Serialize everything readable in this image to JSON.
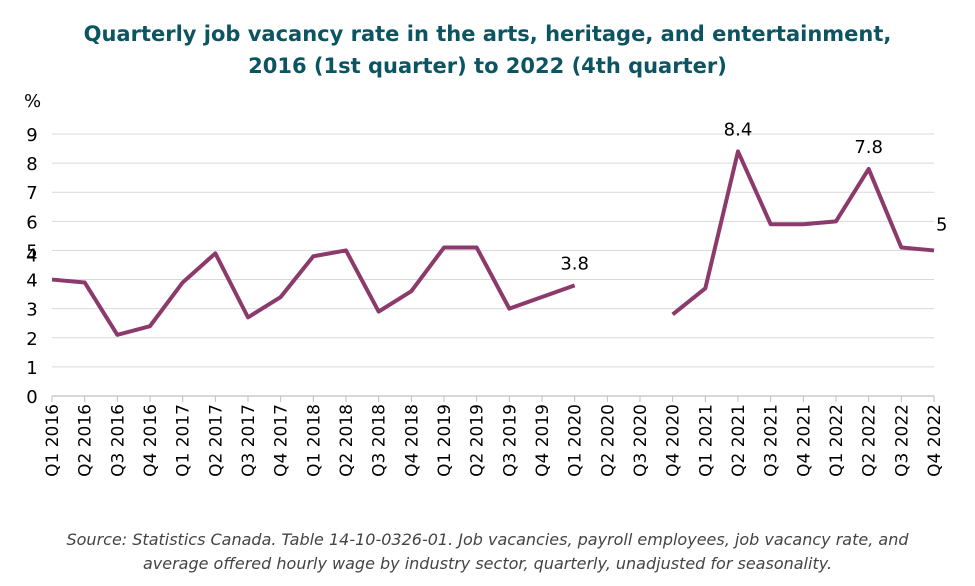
{
  "chart_data": {
    "type": "line",
    "title_line1": "Quarterly job vacancy rate in the arts, heritage, and entertainment,",
    "title_line2": "2016 (1st quarter) to 2022 (4th quarter)",
    "ylabel": "%",
    "ylim": [
      0,
      9
    ],
    "yticks": [
      0,
      1,
      2,
      3,
      4,
      5,
      6,
      7,
      8,
      9
    ],
    "grid": true,
    "categories": [
      "Q1 2016",
      "Q2 2016",
      "Q3 2016",
      "Q4 2016",
      "Q1 2017",
      "Q2 2017",
      "Q3 2017",
      "Q4 2017",
      "Q1 2018",
      "Q2 2018",
      "Q3 2018",
      "Q4 2018",
      "Q1 2019",
      "Q2 2019",
      "Q3 2019",
      "Q4 2019",
      "Q1 2020",
      "Q2 2020",
      "Q3 2020",
      "Q4 2020",
      "Q1 2021",
      "Q2 2021",
      "Q3 2021",
      "Q4 2021",
      "Q1 2022",
      "Q2 2022",
      "Q3 2022",
      "Q4 2022"
    ],
    "series": [
      {
        "color": "#8b3a6b",
        "values": [
          4.0,
          3.9,
          2.1,
          2.4,
          3.9,
          4.9,
          2.7,
          3.4,
          4.8,
          5.0,
          2.9,
          3.6,
          5.1,
          5.1,
          3.0,
          3.4,
          3.8,
          null,
          null,
          2.8,
          3.7,
          8.4,
          5.9,
          5.9,
          6.0,
          7.8,
          5.1,
          5.0
        ]
      }
    ],
    "data_labels": [
      {
        "index": 0,
        "text": "4"
      },
      {
        "index": 16,
        "text": "3.8"
      },
      {
        "index": 21,
        "text": "8.4"
      },
      {
        "index": 25,
        "text": "7.8"
      },
      {
        "index": 27,
        "text": "5"
      }
    ]
  },
  "source_line1": "Source: Statistics Canada. Table 14-10-0326-01. Job vacancies, payroll employees, job vacancy rate, and",
  "source_line2": "average offered hourly wage by industry sector, quarterly, unadjusted for seasonality."
}
